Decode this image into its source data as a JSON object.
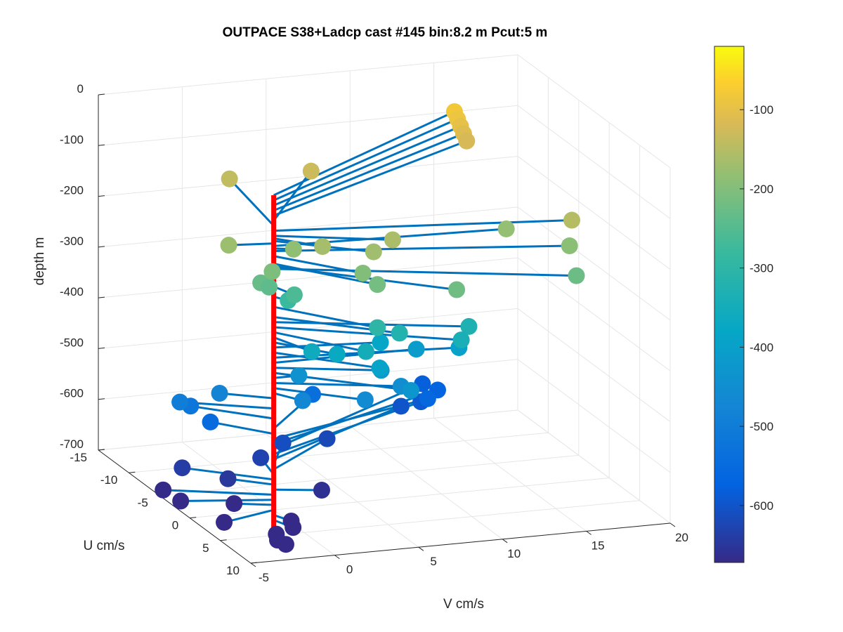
{
  "chart_data": {
    "type": "scatter3d",
    "title": "OUTPACE S38+Ladcp cast #145 bin:8.2 m  Pcut:5 m",
    "xlabel": "V cm/s",
    "ylabel": "U cm/s",
    "zlabel": "depth m",
    "xlim": [
      -5,
      20
    ],
    "ylim": [
      -15,
      10
    ],
    "zlim": [
      -700,
      0
    ],
    "xticks": [
      "-5",
      "0",
      "5",
      "10",
      "15",
      "20"
    ],
    "yticks": [
      "-15",
      "-10",
      "-5",
      "0",
      "5",
      "10"
    ],
    "zticks": [
      "0",
      "-100",
      "-200",
      "-300",
      "-400",
      "-500",
      "-600",
      "-700"
    ],
    "colorbar": {
      "ticks": [
        "-100",
        "-200",
        "-300",
        "-400",
        "-500",
        "-600"
      ],
      "range": [
        -672,
        -20
      ],
      "colormap": "parula"
    },
    "reference_line_color": "#ff0000",
    "stick_color": "#0072bd",
    "grid": true,
    "columns": [
      "depth",
      "V",
      "U"
    ],
    "points": [
      [
        -80,
        15.5,
        -13
      ],
      [
        -90,
        15.5,
        -12.5
      ],
      [
        -100,
        15.5,
        -12
      ],
      [
        -110,
        15.5,
        -11.5
      ],
      [
        -120,
        15.5,
        -11
      ],
      [
        -130,
        5.5,
        -9
      ],
      [
        -140,
        1.0,
        -10
      ],
      [
        -150,
        16.5,
        3.5
      ],
      [
        -160,
        6.0,
        3.0
      ],
      [
        -165,
        2.0,
        2.5
      ],
      [
        -170,
        4.5,
        4.0
      ],
      [
        -175,
        -2.5,
        -0.5
      ],
      [
        -180,
        13.5,
        1.0
      ],
      [
        -185,
        1.0,
        0.5
      ],
      [
        -190,
        16.0,
        4.5
      ],
      [
        -200,
        3.5,
        5.0
      ],
      [
        -205,
        -1.0,
        2.5
      ],
      [
        -215,
        4.0,
        6.0
      ],
      [
        -220,
        8.0,
        8.0
      ],
      [
        -225,
        15.5,
        7.0
      ],
      [
        -230,
        -1.5,
        2.0
      ],
      [
        -240,
        -1.0,
        2.0
      ],
      [
        -260,
        0.5,
        2.0
      ],
      [
        -280,
        0.5,
        1.0
      ],
      [
        -300,
        4.0,
        6.0
      ],
      [
        -320,
        5.5,
        5.5
      ],
      [
        -330,
        10.0,
        4.5
      ],
      [
        -340,
        9.0,
        6.0
      ],
      [
        -350,
        3.5,
        5.5
      ],
      [
        -360,
        1.0,
        3.5
      ],
      [
        -370,
        2.5,
        3.5
      ],
      [
        -380,
        6.0,
        1.0
      ],
      [
        -390,
        4.5,
        5.0
      ],
      [
        -400,
        10.5,
        1.5
      ],
      [
        -410,
        8.5,
        0.0
      ],
      [
        -420,
        5.5,
        2.5
      ],
      [
        -430,
        6.0,
        6.0
      ],
      [
        -440,
        1.5,
        0.0
      ],
      [
        -450,
        6.5,
        3.0
      ],
      [
        -460,
        4.0,
        4.0
      ],
      [
        -470,
        1.0,
        2.0
      ],
      [
        -480,
        -2.5,
        -2.0
      ],
      [
        -500,
        -4.5,
        -3.0
      ],
      [
        -520,
        -3.5,
        -4.0
      ],
      [
        -540,
        4.5,
        -6.0
      ],
      [
        -550,
        -2.5,
        -3.5
      ],
      [
        -560,
        11.0,
        -5.0
      ],
      [
        -570,
        12.5,
        -7.5
      ],
      [
        -580,
        12.5,
        -10.0
      ],
      [
        -590,
        11.5,
        -7.5
      ],
      [
        -600,
        10.5,
        -8.0
      ],
      [
        -610,
        2.0,
        -4.0
      ],
      [
        -620,
        5.0,
        -5.0
      ],
      [
        -630,
        0.5,
        -3.5
      ],
      [
        -640,
        -4.0,
        -4.0
      ],
      [
        -650,
        -2.0,
        -2.0
      ],
      [
        -660,
        2.5,
        1.0
      ],
      [
        -670,
        -5.5,
        -3.0
      ],
      [
        -680,
        -5.0,
        -1.5
      ],
      [
        -690,
        -2.0,
        -1.0
      ],
      [
        -700,
        -3.5,
        1.5
      ],
      [
        -710,
        0.5,
        1.5
      ],
      [
        -720,
        0.5,
        1.8
      ],
      [
        -730,
        -0.5,
        1.8
      ],
      [
        -740,
        -0.5,
        2.0
      ],
      [
        -750,
        0.0,
        2.0
      ]
    ]
  }
}
